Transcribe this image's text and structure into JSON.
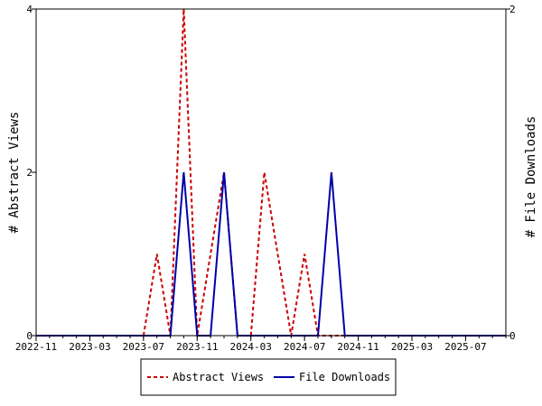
{
  "chart_data": {
    "type": "line",
    "x_ticks": [
      "2022-11",
      "2023-03",
      "2023-07",
      "2023-11",
      "2024-03",
      "2024-07",
      "2024-11",
      "2025-03",
      "2025-07"
    ],
    "ylabel_left": "# Abstract Views",
    "ylabel_right": "# File Downloads",
    "ylim_left": [
      0,
      4
    ],
    "ylim_right": [
      0,
      2
    ],
    "y_ticks_left": [
      "0",
      "2",
      "4"
    ],
    "y_ticks_right": [
      "0",
      "2"
    ],
    "x_range": [
      "2022-11",
      "2025-10"
    ],
    "legend_position": "bottom-center",
    "series": [
      {
        "name": "Abstract Views",
        "axis": "left",
        "color": "#cc0000",
        "dash": "dashed",
        "x": [
          "2022-11",
          "2022-12",
          "2023-01",
          "2023-02",
          "2023-03",
          "2023-04",
          "2023-05",
          "2023-06",
          "2023-07",
          "2023-08",
          "2023-09",
          "2023-10",
          "2023-11",
          "2023-12",
          "2024-01",
          "2024-02",
          "2024-03",
          "2024-04",
          "2024-05",
          "2024-06",
          "2024-07",
          "2024-08",
          "2024-09",
          "2024-10",
          "2024-11",
          "2024-12",
          "2025-01",
          "2025-02",
          "2025-03",
          "2025-04",
          "2025-05",
          "2025-06",
          "2025-07",
          "2025-08",
          "2025-09",
          "2025-10"
        ],
        "values": [
          0,
          0,
          0,
          0,
          0,
          0,
          0,
          0,
          0,
          1,
          0,
          4,
          0,
          1,
          2,
          0,
          0,
          2,
          1,
          0,
          1,
          0,
          0,
          0,
          0,
          0,
          0,
          0,
          0,
          0,
          0,
          0,
          0,
          0,
          0,
          0
        ]
      },
      {
        "name": "File Downloads",
        "axis": "right",
        "color": "#0000aa",
        "dash": "solid",
        "x": [
          "2022-11",
          "2022-12",
          "2023-01",
          "2023-02",
          "2023-03",
          "2023-04",
          "2023-05",
          "2023-06",
          "2023-07",
          "2023-08",
          "2023-09",
          "2023-10",
          "2023-11",
          "2023-12",
          "2024-01",
          "2024-02",
          "2024-03",
          "2024-04",
          "2024-05",
          "2024-06",
          "2024-07",
          "2024-08",
          "2024-09",
          "2024-10",
          "2024-11",
          "2024-12",
          "2025-01",
          "2025-02",
          "2025-03",
          "2025-04",
          "2025-05",
          "2025-06",
          "2025-07",
          "2025-08",
          "2025-09",
          "2025-10"
        ],
        "values": [
          0,
          0,
          0,
          0,
          0,
          0,
          0,
          0,
          0,
          0,
          0,
          1,
          0,
          0,
          1,
          0,
          0,
          0,
          0,
          0,
          0,
          0,
          1,
          0,
          0,
          0,
          0,
          0,
          0,
          0,
          0,
          0,
          0,
          0,
          0,
          0
        ]
      }
    ]
  }
}
